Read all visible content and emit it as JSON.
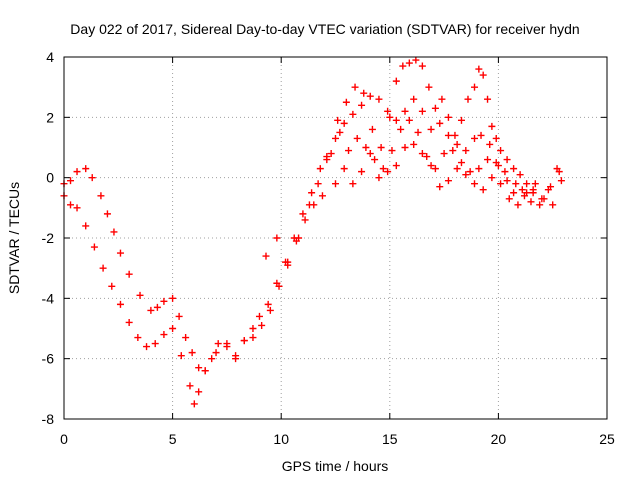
{
  "chart_data": {
    "type": "scatter",
    "title": "Day 022 of 2017, Sidereal Day-to-day VTEC variation (SDTVAR) for receiver hydn",
    "xlabel": "GPS time / hours",
    "ylabel": "SDTVAR / TECUs",
    "xlim": [
      0,
      25
    ],
    "ylim": [
      -8,
      4
    ],
    "xticks": [
      0,
      5,
      10,
      15,
      20,
      25
    ],
    "yticks": [
      -8,
      -6,
      -4,
      -2,
      0,
      2,
      4
    ],
    "grid": true,
    "marker": "+",
    "color": "#ff0000",
    "series": [
      {
        "x": [
          0.0,
          0.3,
          0.6,
          1.0,
          1.3,
          1.7,
          2.0,
          2.3,
          2.6,
          3.0,
          3.5,
          4.0,
          4.3,
          4.6,
          5.0,
          5.3,
          5.6,
          5.9,
          6.2,
          6.5,
          7.0,
          7.5,
          7.9,
          8.3,
          8.7,
          9.0,
          9.4,
          9.8,
          10.2,
          10.6,
          11.0,
          11.4,
          11.8,
          12.1,
          12.5,
          12.9,
          13.3,
          13.7,
          14.1,
          14.5,
          14.9,
          15.3,
          15.7,
          16.1,
          16.5,
          16.9,
          17.3,
          17.7,
          18.1,
          18.5,
          18.9,
          19.2,
          19.6,
          20.0,
          20.4,
          20.8,
          21.2,
          21.6,
          22.0,
          22.4,
          22.8
        ],
        "y": [
          -0.2,
          -0.1,
          0.2,
          0.3,
          0.0,
          -0.6,
          -1.2,
          -1.8,
          -2.5,
          -3.2,
          -3.9,
          -4.4,
          -4.3,
          -4.1,
          -4.0,
          -4.6,
          -5.3,
          -5.8,
          -6.3,
          -6.4,
          -5.8,
          -5.5,
          -5.9,
          -5.4,
          -5.0,
          -4.6,
          -4.2,
          -3.5,
          -2.8,
          -2.0,
          -1.2,
          -0.5,
          0.3,
          0.6,
          1.3,
          1.8,
          2.1,
          2.4,
          2.7,
          2.6,
          2.2,
          1.9,
          2.2,
          2.6,
          2.2,
          1.6,
          1.8,
          1.4,
          1.1,
          0.9,
          1.3,
          1.4,
          1.1,
          0.4,
          -0.1,
          -0.2,
          -0.6,
          -0.5,
          -0.7,
          -0.3,
          0.2
        ]
      },
      {
        "x": [
          0.0,
          0.3,
          0.6,
          1.0,
          1.4,
          1.8,
          2.2,
          2.6,
          3.0,
          3.4,
          3.8,
          4.2,
          4.6,
          5.0,
          5.4,
          5.8,
          6.0,
          6.2,
          6.5,
          6.8,
          7.1,
          7.5,
          7.9,
          8.3,
          8.7,
          9.1,
          9.5,
          9.9,
          10.3,
          10.7,
          11.1,
          11.5,
          11.9,
          12.3,
          12.7,
          13.1,
          13.5,
          13.9,
          14.3,
          14.7,
          15.1,
          15.5,
          15.9,
          16.3,
          16.7,
          17.1,
          17.5,
          17.9,
          18.3,
          18.7,
          19.1,
          19.5,
          19.9,
          20.3,
          20.7,
          21.1,
          21.5,
          21.9,
          22.3,
          22.7
        ],
        "y": [
          -0.6,
          -0.9,
          -1.0,
          -1.6,
          -2.3,
          -3.0,
          -3.6,
          -4.2,
          -4.8,
          -5.3,
          -5.6,
          -5.5,
          -5.2,
          -5.0,
          -5.9,
          -6.9,
          -7.5,
          -7.1,
          -6.4,
          -6.0,
          -5.5,
          -5.6,
          -6.0,
          -5.4,
          -5.3,
          -4.9,
          -4.4,
          -3.6,
          -2.9,
          -2.1,
          -1.4,
          -0.9,
          -0.6,
          0.8,
          1.5,
          0.9,
          1.3,
          1.0,
          0.6,
          0.3,
          0.9,
          1.6,
          1.9,
          1.5,
          0.7,
          0.3,
          0.8,
          0.9,
          0.5,
          0.2,
          0.3,
          0.6,
          0.5,
          0.2,
          -0.5,
          -0.4,
          -0.8,
          -0.9,
          -0.4,
          0.3
        ]
      },
      {
        "x": [
          9.3,
          9.8,
          10.3,
          10.8,
          11.3,
          11.7,
          12.1,
          12.5,
          12.9,
          13.3,
          13.7,
          14.1,
          14.5,
          14.9,
          15.3,
          15.7,
          16.1,
          16.5,
          16.9,
          17.3,
          17.7,
          18.1,
          18.5,
          18.9,
          19.3,
          19.7,
          20.1,
          20.5,
          20.9,
          21.3,
          21.7,
          22.1,
          22.5,
          22.9
        ],
        "y": [
          -2.6,
          -2.0,
          -2.8,
          -2.0,
          -0.9,
          -0.2,
          0.7,
          -0.2,
          0.3,
          -0.2,
          0.2,
          0.8,
          0.0,
          0.2,
          0.4,
          1.0,
          1.1,
          0.8,
          0.4,
          -0.3,
          -0.1,
          0.3,
          0.1,
          -0.2,
          -0.4,
          0.0,
          -0.2,
          -0.7,
          -0.9,
          -0.5,
          -0.2,
          -0.7,
          -0.9,
          -0.1
        ]
      },
      {
        "x": [
          12.6,
          13.0,
          13.4,
          13.8,
          14.2,
          14.6,
          15.0,
          15.3,
          15.6,
          15.9,
          16.2,
          16.5,
          16.8,
          17.1,
          17.4,
          17.7,
          18.0,
          18.3,
          18.6,
          18.9,
          19.1,
          19.3,
          19.5,
          19.7,
          19.9,
          20.1,
          20.4,
          20.7,
          21.0,
          21.3,
          21.6
        ],
        "y": [
          1.9,
          2.5,
          3.0,
          2.8,
          1.6,
          1.0,
          2.0,
          3.2,
          3.7,
          3.8,
          3.9,
          3.7,
          3.0,
          2.3,
          2.6,
          2.0,
          1.4,
          1.9,
          2.6,
          3.0,
          3.6,
          3.4,
          2.6,
          1.7,
          1.3,
          0.9,
          0.6,
          0.3,
          0.1,
          -0.2,
          -0.4
        ]
      }
    ]
  }
}
